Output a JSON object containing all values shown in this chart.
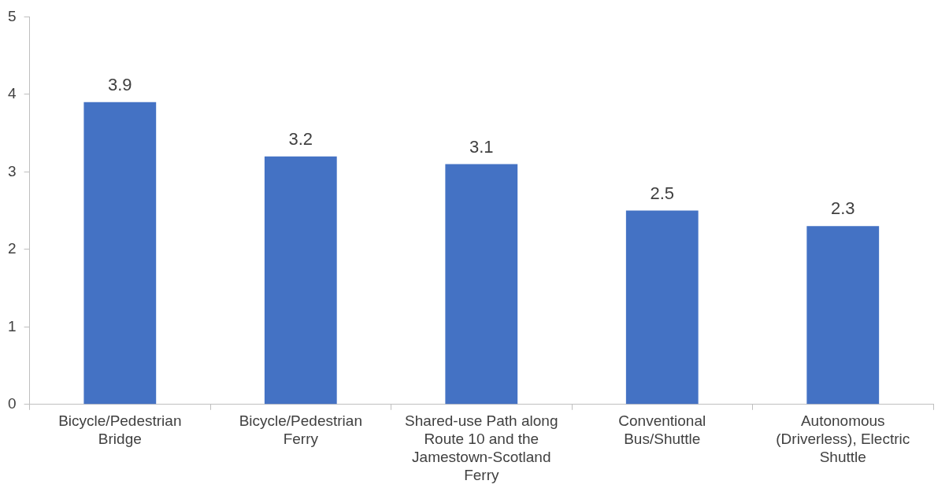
{
  "chart_data": {
    "type": "bar",
    "categories": [
      "Bicycle/Pedestrian Bridge",
      "Bicycle/Pedestrian Ferry",
      "Shared-use Path along Route 10 and the Jamestown-Scotland Ferry",
      "Conventional Bus/Shuttle",
      "Autonomous (Driverless), Electric Shuttle"
    ],
    "values": [
      3.9,
      3.2,
      3.1,
      2.5,
      2.3
    ],
    "color": "#4472c4",
    "ylim": [
      0,
      5
    ],
    "yticks": [
      0,
      1,
      2,
      3,
      4,
      5
    ],
    "grid": false,
    "legend": false,
    "data_labels": true
  }
}
